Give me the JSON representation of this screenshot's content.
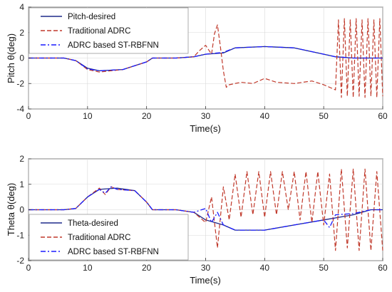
{
  "colors": {
    "desired": "#1f2a8a",
    "traditional": "#c0392b",
    "stadrc": "#1a1aff",
    "axis": "#333333",
    "grid": "#d8d8d8"
  },
  "chart_data": [
    {
      "type": "line",
      "xlabel": "Time(s)",
      "ylabel": "Pitch θ(deg)",
      "xlim": [
        0,
        60
      ],
      "ylim": [
        -4,
        4
      ],
      "xticks": [
        "0",
        "10",
        "20",
        "30",
        "40",
        "50",
        "60"
      ],
      "yticks": [
        "4",
        "2",
        "0",
        "-2",
        "-4"
      ],
      "grid": true,
      "legend_position": "top-left",
      "series": [
        {
          "name": "Pitch-desired",
          "style": "solid",
          "x": [
            0,
            6,
            8,
            10,
            12,
            16,
            20,
            21,
            25,
            28,
            30,
            33,
            35,
            40,
            45,
            50,
            52,
            55,
            60
          ],
          "y": [
            0,
            0,
            -0.2,
            -0.8,
            -1.0,
            -0.9,
            -0.3,
            0,
            0,
            0.1,
            0.3,
            0.4,
            0.8,
            0.9,
            0.8,
            0.3,
            0.1,
            0,
            0
          ]
        },
        {
          "name": "Traditional ADRC",
          "style": "dashed",
          "x": [
            0,
            6,
            8,
            10,
            12,
            16,
            20,
            21,
            25,
            28,
            29,
            30,
            31,
            31.5,
            32,
            32.5,
            33,
            33.5,
            34,
            36,
            38,
            40,
            42,
            45,
            48,
            50,
            52,
            52.5,
            53,
            53.5,
            54,
            54.5,
            55,
            55.5,
            56,
            56.5,
            57,
            57.5,
            58,
            58.5,
            59,
            59.5,
            60
          ],
          "y": [
            0,
            0,
            -0.2,
            -0.9,
            -1.1,
            -0.9,
            -0.3,
            0,
            0,
            0.1,
            0.6,
            1.0,
            0.3,
            1.9,
            2.6,
            0.9,
            -1.0,
            -2.3,
            -2.1,
            -1.9,
            -2.0,
            -1.6,
            -1.9,
            -2.0,
            -1.8,
            -2.1,
            -2.5,
            3.0,
            -3.1,
            3.1,
            -3.0,
            3.0,
            -3.1,
            3.1,
            -3.0,
            3.0,
            -3.1,
            3.1,
            -3.0,
            3.0,
            -3.1,
            3.1,
            -3.0
          ]
        },
        {
          "name": "ADRC based ST-RBFNN",
          "style": "dashdot",
          "x": [
            0,
            6,
            8,
            10,
            12,
            16,
            20,
            21,
            25,
            28,
            30,
            33,
            35,
            40,
            45,
            50,
            52,
            55,
            60
          ],
          "y": [
            0,
            0,
            -0.2,
            -0.85,
            -1.0,
            -0.9,
            -0.3,
            0,
            0,
            0.1,
            0.3,
            0.45,
            0.8,
            0.9,
            0.8,
            0.3,
            0.1,
            0,
            0
          ]
        }
      ]
    },
    {
      "type": "line",
      "xlabel": "Time(s)",
      "ylabel": "Theta θ(deg)",
      "xlim": [
        0,
        60
      ],
      "ylim": [
        -2,
        2
      ],
      "xticks": [
        "0",
        "10",
        "20",
        "30",
        "40",
        "50",
        "60"
      ],
      "yticks": [
        "2",
        "1",
        "0",
        "-1",
        "-2"
      ],
      "grid": true,
      "legend_position": "bottom-left",
      "series": [
        {
          "name": "Theta-desired",
          "style": "solid",
          "x": [
            0,
            6,
            8,
            10,
            12,
            15,
            18,
            20,
            21,
            25,
            28,
            30,
            33,
            35,
            40,
            45,
            50,
            55,
            58,
            60
          ],
          "y": [
            0,
            0,
            0.05,
            0.5,
            0.8,
            0.85,
            0.75,
            0.3,
            0,
            0,
            -0.1,
            -0.4,
            -0.6,
            -0.8,
            -0.8,
            -0.6,
            -0.4,
            -0.2,
            0,
            0
          ]
        },
        {
          "name": "Traditional ADRC",
          "style": "dashed",
          "x": [
            0,
            6,
            8,
            10,
            12,
            13,
            14,
            15,
            18,
            20,
            21,
            25,
            28,
            30,
            31,
            32,
            33,
            34,
            35,
            36,
            37,
            38,
            39,
            40,
            41,
            42,
            43,
            44,
            45,
            46,
            47,
            48,
            49,
            50,
            51,
            52,
            53,
            54,
            55,
            56,
            57,
            58,
            59,
            60
          ],
          "y": [
            0,
            0,
            0.05,
            0.5,
            0.85,
            0.6,
            0.9,
            0.8,
            0.75,
            0.3,
            0,
            0,
            -0.1,
            -0.5,
            0.5,
            -1.5,
            0.9,
            -0.4,
            1.4,
            -0.3,
            1.5,
            -0.2,
            1.5,
            -0.3,
            1.5,
            -0.2,
            1.5,
            0,
            1.5,
            -0.4,
            1.5,
            -0.5,
            1.5,
            -0.6,
            1.4,
            -1.6,
            1.6,
            -1.5,
            1.6,
            -1.6,
            1.6,
            -1.6,
            1.5,
            -1.6
          ]
        },
        {
          "name": "ADRC based ST-RBFNN",
          "style": "dashdot",
          "x": [
            0,
            6,
            8,
            10,
            12,
            13,
            14,
            15,
            18,
            20,
            21,
            25,
            28,
            30,
            31,
            32,
            33,
            35,
            40,
            45,
            50,
            51,
            52,
            55,
            58,
            60
          ],
          "y": [
            0,
            0,
            0.05,
            0.5,
            0.8,
            0.65,
            0.9,
            0.8,
            0.75,
            0.3,
            0,
            0,
            -0.1,
            0.05,
            -0.5,
            -0.1,
            -0.6,
            -0.8,
            -0.8,
            -0.6,
            -0.4,
            -0.7,
            -0.2,
            -0.15,
            0,
            0
          ]
        }
      ]
    }
  ]
}
